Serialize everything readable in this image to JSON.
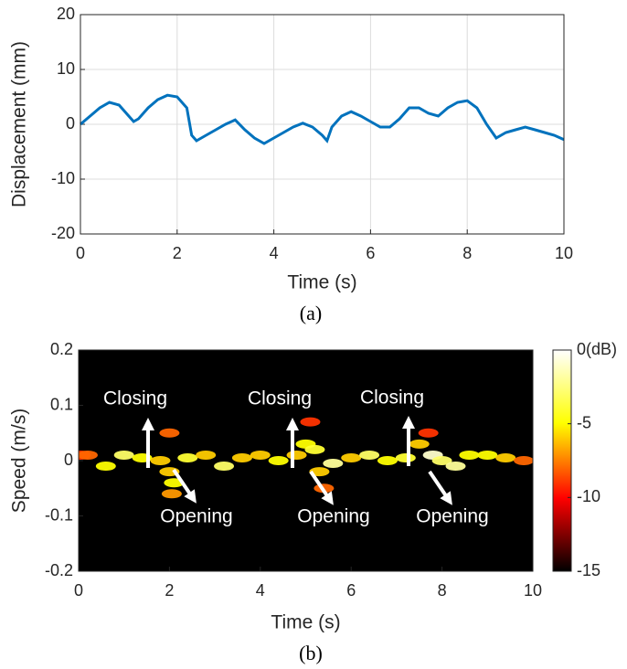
{
  "chart_data": [
    {
      "type": "line",
      "xlabel": "Time (s)",
      "ylabel": "Displacement (mm)",
      "caption": "(a)",
      "color": "#0072bd",
      "grid": true,
      "xlim": [
        0,
        10
      ],
      "ylim": [
        -20,
        20
      ],
      "xticks": [
        0,
        2,
        4,
        6,
        8,
        10
      ],
      "yticks": [
        -20,
        -10,
        0,
        10,
        20
      ],
      "x": [
        0,
        0.2,
        0.4,
        0.6,
        0.8,
        1.0,
        1.1,
        1.2,
        1.4,
        1.6,
        1.8,
        2.0,
        2.2,
        2.3,
        2.4,
        2.6,
        2.8,
        3.0,
        3.2,
        3.4,
        3.6,
        3.8,
        4.0,
        4.2,
        4.4,
        4.6,
        4.8,
        5.0,
        5.1,
        5.2,
        5.4,
        5.6,
        5.8,
        6.0,
        6.2,
        6.4,
        6.6,
        6.8,
        7.0,
        7.2,
        7.4,
        7.6,
        7.8,
        8.0,
        8.2,
        8.4,
        8.6,
        8.8,
        9.0,
        9.2,
        9.4,
        9.6,
        9.8,
        10.0
      ],
      "values": [
        0,
        1.5,
        3,
        4,
        3.5,
        1.5,
        0.5,
        1,
        3,
        4.5,
        5.3,
        5,
        3,
        -2,
        -3,
        -2,
        -1,
        0,
        0.8,
        -1,
        -2.5,
        -3.5,
        -2.5,
        -1.5,
        -0.5,
        0.2,
        -0.5,
        -2,
        -3,
        -0.5,
        1.5,
        2.3,
        1.5,
        0.5,
        -0.5,
        -0.5,
        1,
        3,
        3,
        2,
        1.5,
        3,
        4,
        4.3,
        3,
        0,
        -2.5,
        -1.5,
        -1,
        -0.5,
        -1,
        -1.5,
        -2,
        -2.8
      ]
    },
    {
      "type": "heatmap",
      "xlabel": "Time (s)",
      "ylabel": "Speed (m/s)",
      "caption": "(b)",
      "xlim": [
        0,
        10
      ],
      "ylim": [
        -0.2,
        0.2
      ],
      "xticks": [
        0,
        2,
        4,
        6,
        8,
        10
      ],
      "yticks": [
        -0.2,
        -0.1,
        0,
        0.1,
        0.2
      ],
      "clim": [
        -15,
        0
      ],
      "cticks": [
        {
          "value": 0,
          "label": "0(dB)"
        },
        -5,
        -10,
        -15
      ],
      "colormap": "hot",
      "annotations": [
        "Closing",
        "Closing",
        "Closing",
        "Opening",
        "Opening",
        "Opening"
      ],
      "x": [
        0.05,
        0.2,
        0.6,
        1.0,
        1.4,
        1.8,
        2.0,
        2.0,
        2.05,
        2.1,
        2.4,
        2.8,
        3.2,
        3.6,
        4.0,
        4.4,
        4.8,
        5.0,
        5.1,
        5.2,
        5.3,
        5.4,
        5.6,
        6.0,
        6.4,
        6.8,
        7.2,
        7.5,
        7.7,
        7.8,
        8.0,
        8.3,
        8.6,
        9.0,
        9.4,
        9.8
      ],
      "y": [
        0.01,
        0.01,
        -0.01,
        0.01,
        0.005,
        0,
        0.05,
        -0.02,
        -0.06,
        -0.04,
        0.005,
        0.01,
        -0.01,
        0.005,
        0.01,
        0,
        0.01,
        0.03,
        0.07,
        0.02,
        -0.02,
        -0.05,
        -0.005,
        0.005,
        0.01,
        0,
        0.005,
        0.03,
        0.05,
        0.01,
        0,
        -0.01,
        0.01,
        0.01,
        0.005,
        0
      ],
      "values": [
        -9,
        -8,
        -5,
        -3,
        -5,
        -6,
        -8,
        -6,
        -7,
        -5,
        -4,
        -6,
        -3,
        -6,
        -6,
        -5,
        -6,
        -5,
        -9,
        -4,
        -6,
        -8,
        -2,
        -6,
        -3,
        -5,
        -4,
        -6,
        -9,
        -1,
        -3,
        -2,
        -5,
        -5,
        -6,
        -8
      ]
    }
  ]
}
